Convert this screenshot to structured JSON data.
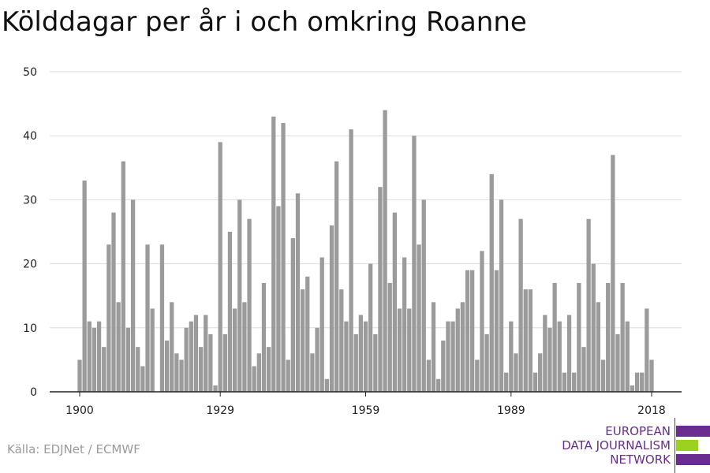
{
  "title": "Kölddagar per år i och omkring Roanne",
  "source": "Källa: EDJNet / ECMWF",
  "logo": {
    "lines": [
      "EUROPEAN",
      "DATA JOURNALISM",
      "NETWORK"
    ],
    "colors": [
      "#6a2c91",
      "#9bd21f",
      "#6a2c91"
    ]
  },
  "colors": {
    "bar": "#9b9b9b",
    "grid": "#dddddd",
    "axis": "#222222",
    "text": "#222222"
  },
  "chart_data": {
    "type": "bar",
    "title": "Kölddagar per år i och omkring Roanne",
    "xlabel": "",
    "ylabel": "",
    "ylim": [
      0,
      50
    ],
    "yticks": [
      0,
      10,
      20,
      30,
      40,
      50
    ],
    "xticks": [
      1900,
      1929,
      1959,
      1989,
      2018
    ],
    "grid": true,
    "categories": [
      1900,
      1901,
      1902,
      1903,
      1904,
      1905,
      1906,
      1907,
      1908,
      1909,
      1910,
      1911,
      1912,
      1913,
      1914,
      1915,
      1916,
      1917,
      1918,
      1919,
      1920,
      1921,
      1922,
      1923,
      1924,
      1925,
      1926,
      1927,
      1928,
      1929,
      1930,
      1931,
      1932,
      1933,
      1934,
      1935,
      1936,
      1937,
      1938,
      1939,
      1940,
      1941,
      1942,
      1943,
      1944,
      1945,
      1946,
      1947,
      1948,
      1949,
      1950,
      1951,
      1952,
      1953,
      1954,
      1955,
      1956,
      1957,
      1958,
      1959,
      1960,
      1961,
      1962,
      1963,
      1964,
      1965,
      1966,
      1967,
      1968,
      1969,
      1970,
      1971,
      1972,
      1973,
      1974,
      1975,
      1976,
      1977,
      1978,
      1979,
      1980,
      1981,
      1982,
      1983,
      1984,
      1985,
      1986,
      1987,
      1988,
      1989,
      1990,
      1991,
      1992,
      1993,
      1994,
      1995,
      1996,
      1997,
      1998,
      1999,
      2000,
      2001,
      2002,
      2003,
      2004,
      2005,
      2006,
      2007,
      2008,
      2009,
      2010,
      2011,
      2012,
      2013,
      2014,
      2015,
      2016,
      2017,
      2018
    ],
    "values": [
      5,
      33,
      11,
      10,
      11,
      7,
      23,
      28,
      14,
      36,
      10,
      30,
      7,
      4,
      23,
      13,
      0,
      23,
      8,
      14,
      6,
      5,
      10,
      11,
      12,
      7,
      12,
      9,
      1,
      39,
      9,
      25,
      13,
      30,
      14,
      27,
      4,
      6,
      17,
      7,
      43,
      29,
      42,
      5,
      24,
      31,
      16,
      18,
      6,
      10,
      21,
      2,
      26,
      36,
      16,
      11,
      41,
      9,
      12,
      11,
      20,
      9,
      32,
      44,
      17,
      28,
      13,
      21,
      13,
      40,
      23,
      30,
      5,
      14,
      2,
      8,
      11,
      11,
      13,
      14,
      19,
      19,
      5,
      22,
      9,
      34,
      19,
      30,
      3,
      11,
      6,
      27,
      16,
      16,
      3,
      6,
      12,
      10,
      17,
      11,
      3,
      12,
      3,
      17,
      7,
      27,
      20,
      14,
      5,
      17,
      37,
      9,
      17,
      11,
      1,
      3,
      3,
      13,
      5
    ]
  }
}
